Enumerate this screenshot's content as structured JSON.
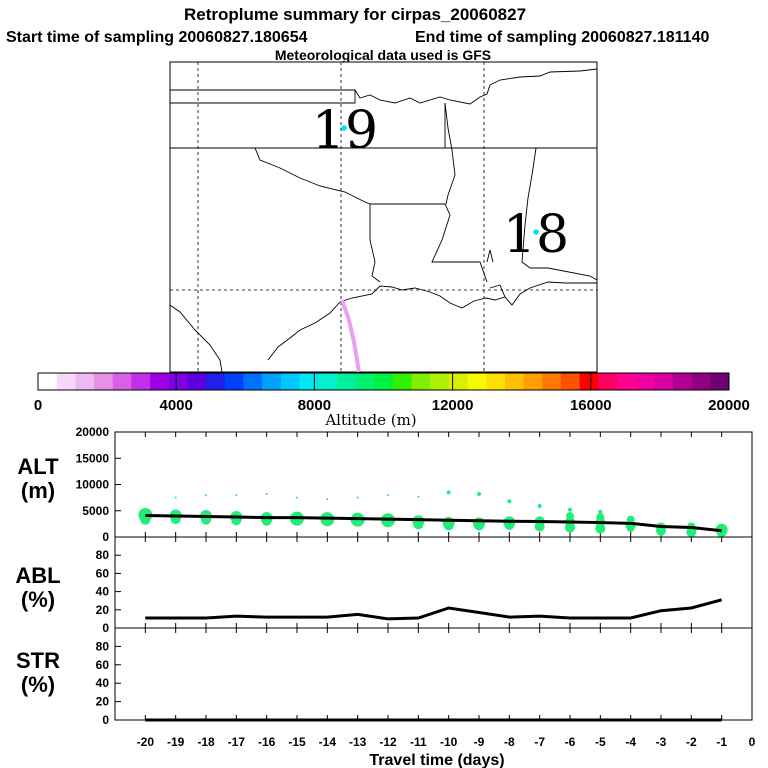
{
  "title": {
    "line1": "Retroplume summary for cirpas_20060827",
    "line2a": "Start time of sampling 20060827.180654",
    "line2b": "End time of sampling 20060827.181140",
    "line3": "Meteorological data used is GFS"
  },
  "map": {
    "labels": [
      {
        "text": "19",
        "marker_color": "#00e5e5"
      },
      {
        "text": "18",
        "marker_color": "#00e5e5"
      }
    ],
    "plume_color": "#e8a0f0"
  },
  "colorbar": {
    "ticks": [
      "0",
      "4000",
      "8000",
      "12000",
      "16000",
      "20000"
    ],
    "label": "Altitude (m)",
    "min": 0,
    "max": 20000,
    "colors": [
      "#ffffff",
      "#f8d8f8",
      "#f0b8f0",
      "#e890e8",
      "#d860e8",
      "#c030e8",
      "#a000e8",
      "#8000e8",
      "#6000e0",
      "#2020e8",
      "#0040ff",
      "#0070ff",
      "#00a0ff",
      "#00c8ff",
      "#00e8f0",
      "#00f0d0",
      "#00f0a0",
      "#00f070",
      "#00f040",
      "#30f000",
      "#80f000",
      "#b0f000",
      "#d8f000",
      "#f8f800",
      "#ffe000",
      "#ffc000",
      "#ffa000",
      "#ff7800",
      "#ff5000",
      "#ff0000",
      "#ff0060",
      "#ff0090",
      "#f000a0",
      "#d800a0",
      "#b00090",
      "#900080",
      "#700070"
    ]
  },
  "chart_data": [
    {
      "type": "scatter",
      "panel_label": [
        "ALT",
        "(m)"
      ],
      "x": [
        -20,
        -19,
        -18,
        -17,
        -16,
        -15,
        -14,
        -13,
        -12,
        -11,
        -10,
        -9,
        -8,
        -7,
        -6,
        -5,
        -4,
        -3,
        -2,
        -1
      ],
      "mean_line": [
        4100,
        4000,
        3900,
        3800,
        3700,
        3700,
        3600,
        3500,
        3400,
        3300,
        3200,
        3100,
        3000,
        2950,
        2850,
        2750,
        2600,
        2000,
        1800,
        1200
      ],
      "points": [
        {
          "x": -20,
          "y": 4200,
          "r": 7
        },
        {
          "x": -20,
          "y": 3300,
          "r": 5
        },
        {
          "x": -19,
          "y": 4100,
          "r": 6
        },
        {
          "x": -19,
          "y": 3400,
          "r": 5
        },
        {
          "x": -19,
          "y": 7500,
          "r": 1
        },
        {
          "x": -18,
          "y": 4000,
          "r": 6
        },
        {
          "x": -18,
          "y": 3300,
          "r": 5
        },
        {
          "x": -18,
          "y": 8000,
          "r": 1
        },
        {
          "x": -17,
          "y": 3800,
          "r": 6
        },
        {
          "x": -17,
          "y": 3200,
          "r": 5
        },
        {
          "x": -17,
          "y": 8000,
          "r": 1
        },
        {
          "x": -16,
          "y": 3600,
          "r": 6
        },
        {
          "x": -16,
          "y": 3100,
          "r": 5
        },
        {
          "x": -16,
          "y": 8200,
          "r": 1
        },
        {
          "x": -15,
          "y": 3500,
          "r": 7
        },
        {
          "x": -15,
          "y": 3100,
          "r": 5
        },
        {
          "x": -15,
          "y": 7500,
          "r": 1
        },
        {
          "x": -14,
          "y": 3400,
          "r": 7
        },
        {
          "x": -14,
          "y": 3000,
          "r": 5
        },
        {
          "x": -14,
          "y": 7200,
          "r": 1
        },
        {
          "x": -13,
          "y": 3300,
          "r": 7
        },
        {
          "x": -13,
          "y": 3000,
          "r": 5
        },
        {
          "x": -13,
          "y": 7500,
          "r": 1
        },
        {
          "x": -12,
          "y": 3200,
          "r": 7
        },
        {
          "x": -12,
          "y": 2800,
          "r": 5
        },
        {
          "x": -12,
          "y": 8000,
          "r": 1
        },
        {
          "x": -11,
          "y": 3000,
          "r": 6
        },
        {
          "x": -11,
          "y": 2400,
          "r": 5
        },
        {
          "x": -11,
          "y": 7700,
          "r": 1
        },
        {
          "x": -10,
          "y": 2700,
          "r": 6
        },
        {
          "x": -10,
          "y": 2200,
          "r": 5
        },
        {
          "x": -10,
          "y": 8500,
          "r": 2
        },
        {
          "x": -9,
          "y": 2600,
          "r": 6
        },
        {
          "x": -9,
          "y": 2200,
          "r": 5
        },
        {
          "x": -9,
          "y": 8200,
          "r": 2
        },
        {
          "x": -8,
          "y": 2800,
          "r": 6
        },
        {
          "x": -8,
          "y": 2300,
          "r": 5
        },
        {
          "x": -8,
          "y": 6800,
          "r": 2
        },
        {
          "x": -7,
          "y": 3000,
          "r": 5
        },
        {
          "x": -7,
          "y": 2000,
          "r": 5
        },
        {
          "x": -7,
          "y": 5900,
          "r": 2
        },
        {
          "x": -6,
          "y": 4000,
          "r": 4
        },
        {
          "x": -6,
          "y": 2900,
          "r": 5
        },
        {
          "x": -6,
          "y": 1800,
          "r": 5
        },
        {
          "x": -6,
          "y": 5200,
          "r": 2
        },
        {
          "x": -5,
          "y": 3800,
          "r": 4
        },
        {
          "x": -5,
          "y": 2800,
          "r": 5
        },
        {
          "x": -5,
          "y": 1600,
          "r": 5
        },
        {
          "x": -5,
          "y": 4800,
          "r": 2
        },
        {
          "x": -4,
          "y": 3300,
          "r": 4
        },
        {
          "x": -4,
          "y": 2200,
          "r": 5
        },
        {
          "x": -4,
          "y": 1700,
          "r": 4
        },
        {
          "x": -3,
          "y": 1800,
          "r": 5
        },
        {
          "x": -3,
          "y": 1200,
          "r": 5
        },
        {
          "x": -2,
          "y": 2000,
          "r": 4
        },
        {
          "x": -2,
          "y": 900,
          "r": 5
        },
        {
          "x": -1,
          "y": 1400,
          "r": 6
        },
        {
          "x": -1,
          "y": 900,
          "r": 5
        }
      ],
      "point_color": "#22ee77",
      "ylim": [
        0,
        20000
      ],
      "yticks": [
        0,
        5000,
        10000,
        15000,
        20000
      ]
    },
    {
      "type": "line",
      "panel_label": [
        "ABL",
        "(%)"
      ],
      "x": [
        -20,
        -19,
        -18,
        -17,
        -16,
        -15,
        -14,
        -13,
        -12,
        -11,
        -10,
        -9,
        -8,
        -7,
        -6,
        -5,
        -4,
        -3,
        -2,
        -1
      ],
      "values": [
        11,
        11,
        11,
        13,
        12,
        12,
        12,
        15,
        10,
        11,
        22,
        17,
        12,
        13,
        11,
        11,
        11,
        19,
        22,
        31
      ],
      "ylim": [
        0,
        100
      ],
      "yticks": [
        0,
        20,
        40,
        60,
        80
      ]
    },
    {
      "type": "line",
      "panel_label": [
        "STR",
        "(%)"
      ],
      "x": [
        -20,
        -19,
        -18,
        -17,
        -16,
        -15,
        -14,
        -13,
        -12,
        -11,
        -10,
        -9,
        -8,
        -7,
        -6,
        -5,
        -4,
        -3,
        -2,
        -1
      ],
      "values": [
        0,
        0,
        0,
        0,
        0,
        0,
        0,
        0,
        0,
        0,
        0,
        0,
        0,
        0,
        0,
        0,
        0,
        0,
        0,
        0
      ],
      "ylim": [
        0,
        100
      ],
      "yticks": [
        0,
        20,
        40,
        60,
        80
      ]
    }
  ],
  "xaxis": {
    "ticks": [
      "-20",
      "-19",
      "-18",
      "-17",
      "-16",
      "-15",
      "-14",
      "-13",
      "-12",
      "-11",
      "-10",
      "-9",
      "-8",
      "-7",
      "-6",
      "-5",
      "-4",
      "-3",
      "-2",
      "-1",
      "0"
    ],
    "label": "Travel time (days)",
    "xlim": [
      -21,
      0
    ]
  }
}
